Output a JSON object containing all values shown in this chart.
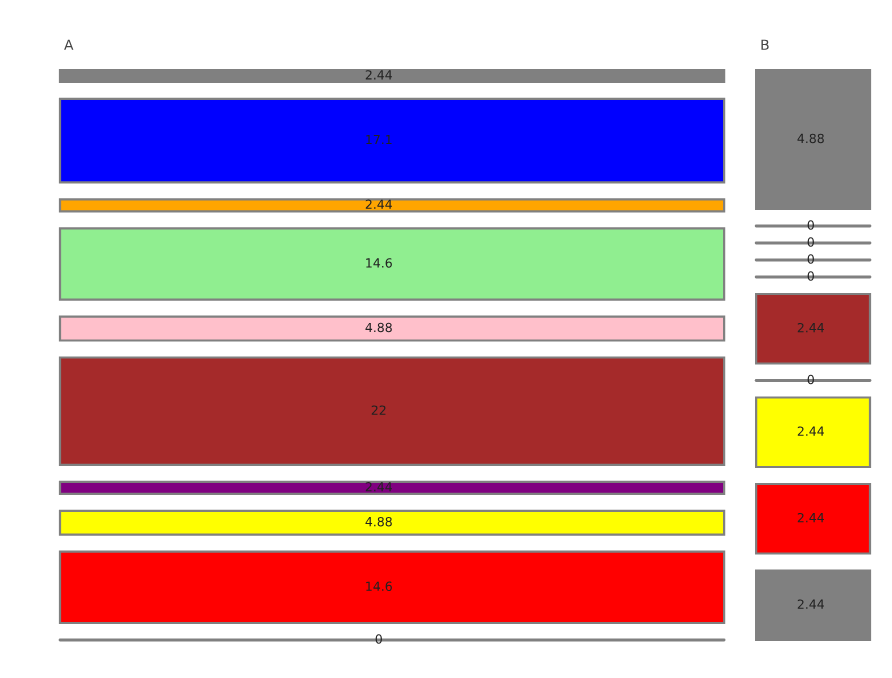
{
  "chart_data": {
    "type": "other",
    "categories": [
      "A",
      "B"
    ],
    "data_labels": true,
    "series": [
      {
        "color": "#808080",
        "values": [
          2.44,
          4.88
        ]
      },
      {
        "color": "#0000ff",
        "values": [
          17.1,
          0
        ]
      },
      {
        "color": "#ffa500",
        "values": [
          2.44,
          0
        ]
      },
      {
        "color": "#90ee90",
        "values": [
          14.6,
          0
        ]
      },
      {
        "color": "#ffc0cb",
        "values": [
          4.88,
          0
        ]
      },
      {
        "color": "#a52a2a",
        "values": [
          22,
          2.44
        ]
      },
      {
        "color": "#800080",
        "values": [
          2.44,
          0
        ]
      },
      {
        "color": "#ffff00",
        "values": [
          4.88,
          2.44
        ]
      },
      {
        "color": "#ff0000",
        "values": [
          14.6,
          2.44
        ]
      },
      {
        "color": "#808080",
        "values": [
          0,
          2.44
        ]
      }
    ]
  }
}
